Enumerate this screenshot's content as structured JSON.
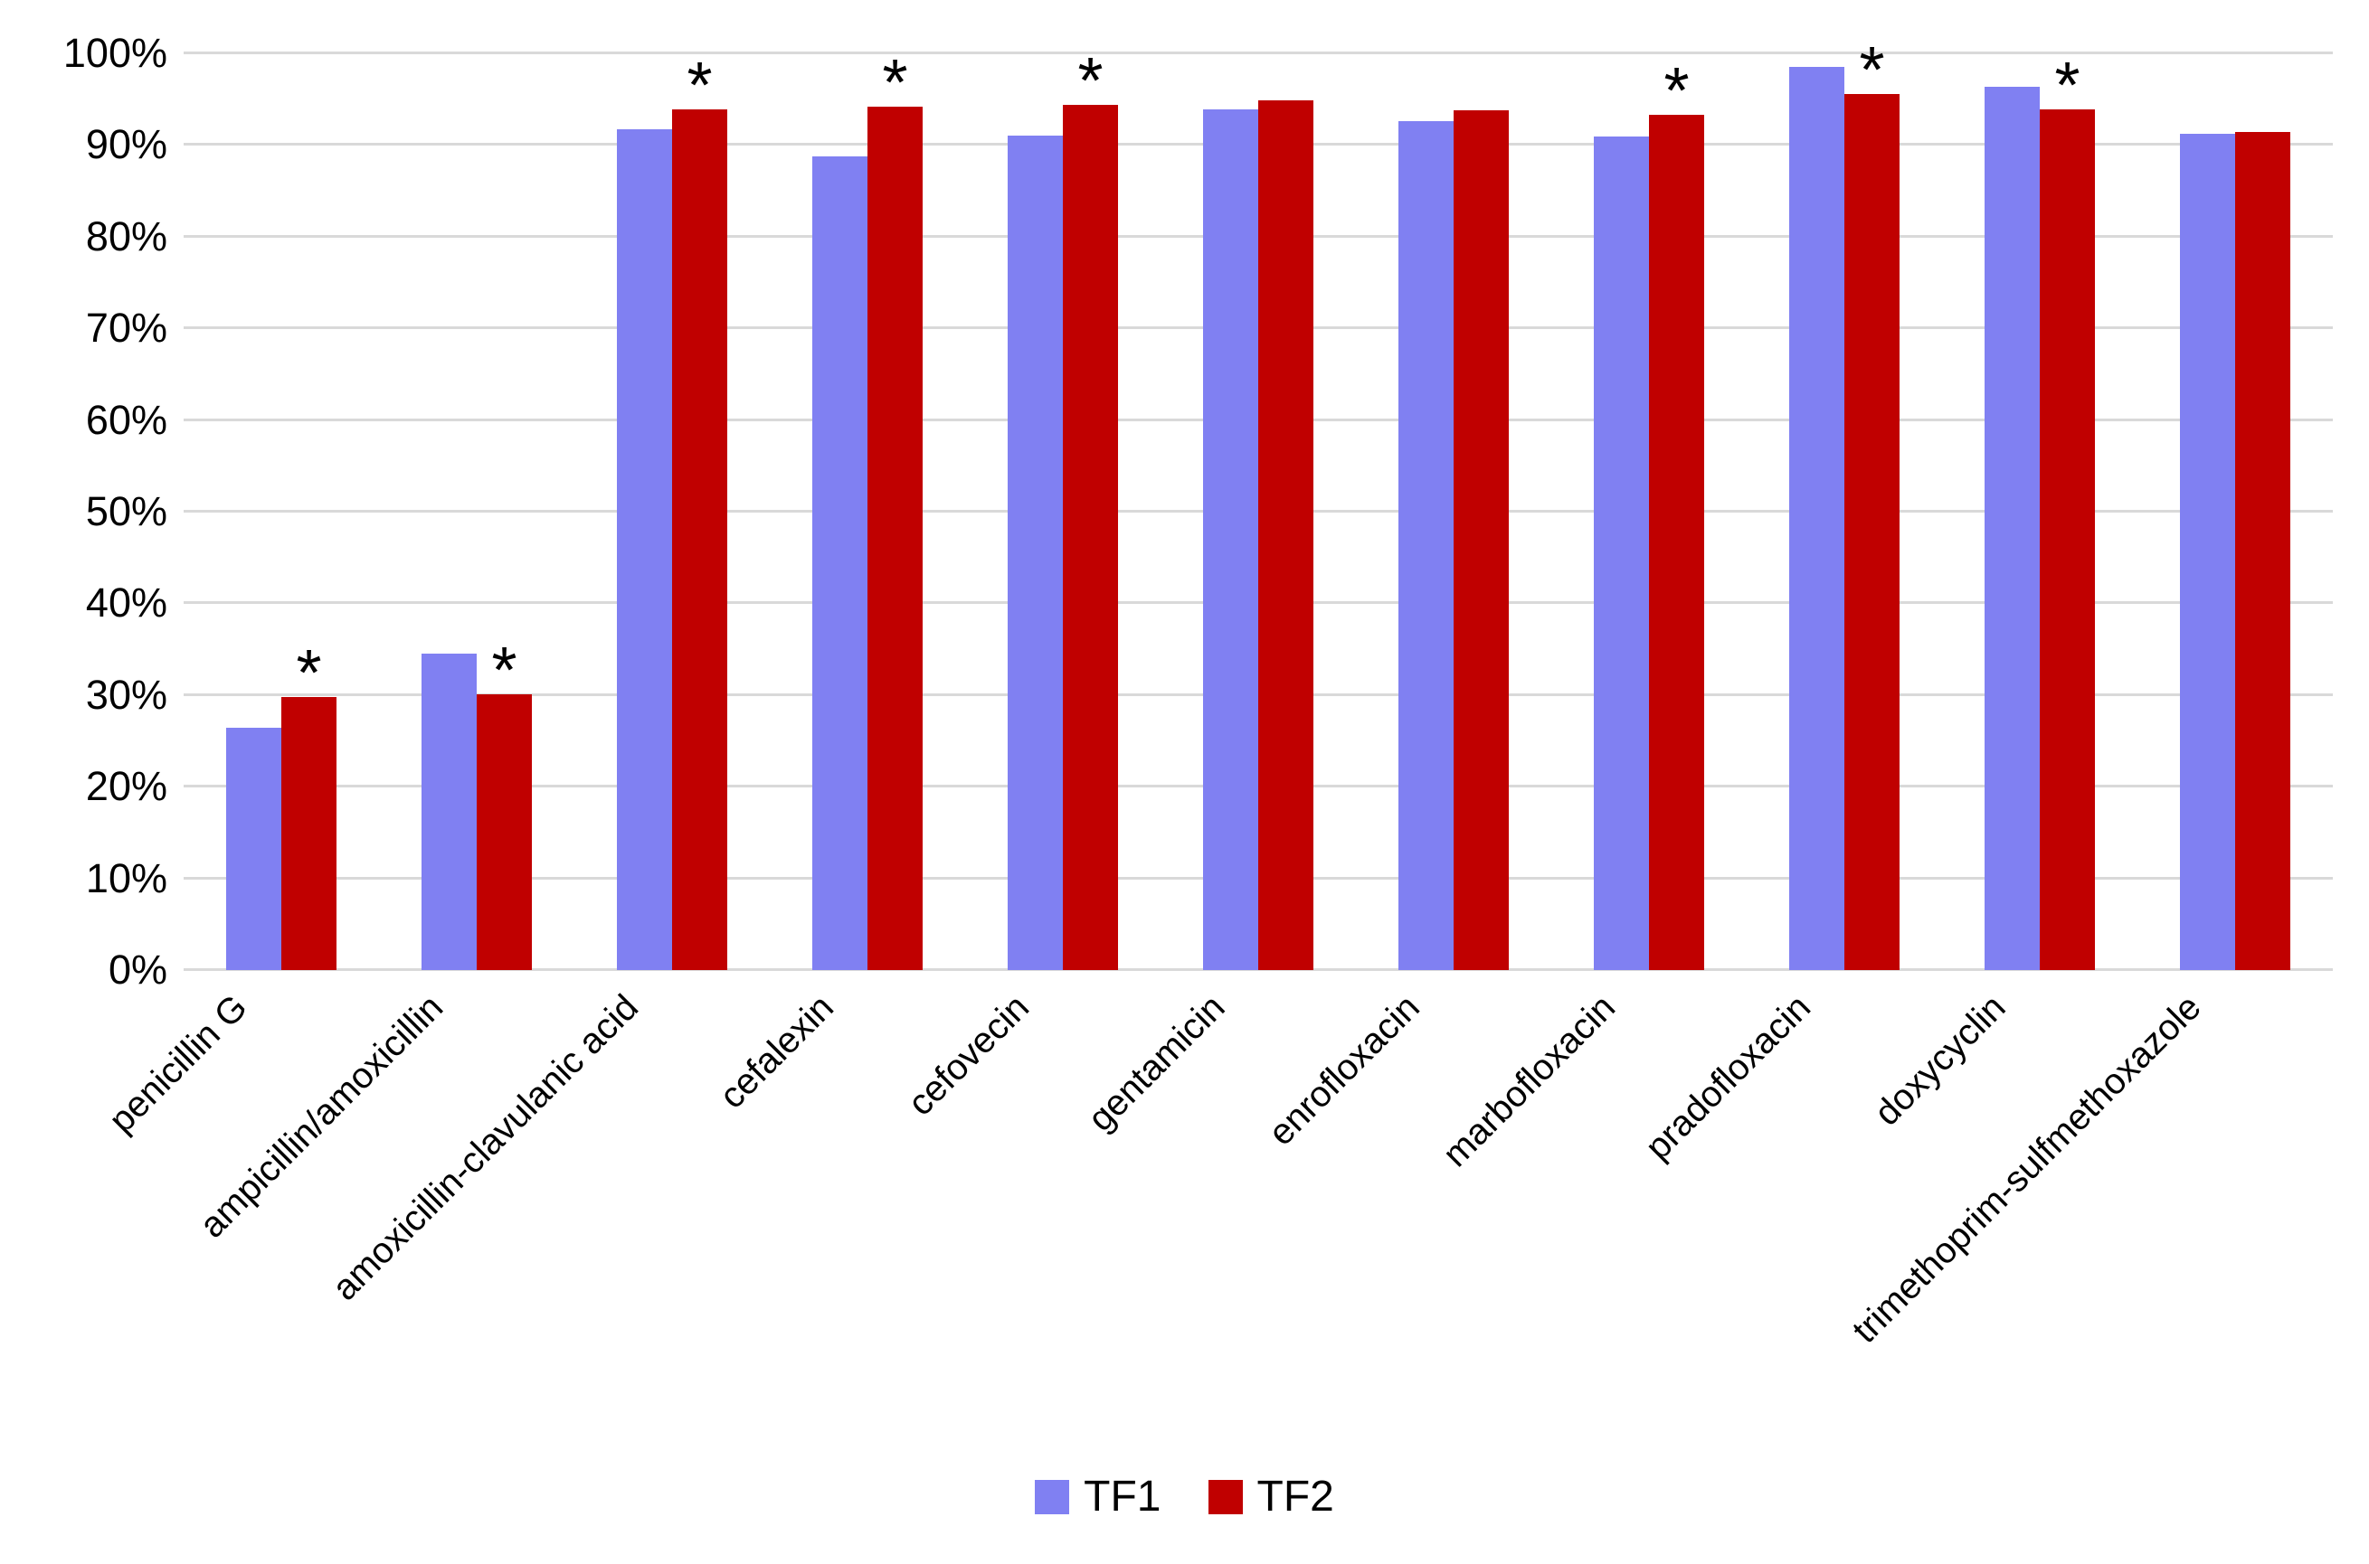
{
  "chart_data": {
    "type": "bar",
    "title": "",
    "xlabel": "",
    "ylabel": "",
    "categories": [
      "penicillin G",
      "ampicillin/amoxicillin",
      "amoxicillin-clavulanic acid",
      "cefalexin",
      "cefovecin",
      "gentamicin",
      "enrofloxacin",
      "marbofloxacin",
      "pradofloxacin",
      "doxycyclin",
      "trimethoprim-sulfmethoxazole"
    ],
    "series": [
      {
        "name": "TF1",
        "color": "#8080F2",
        "values": [
          26.4,
          34.5,
          91.7,
          88.8,
          91.0,
          93.9,
          92.6,
          90.9,
          98.5,
          96.4,
          91.2
        ]
      },
      {
        "name": "TF2",
        "color": "#C00000",
        "values": [
          29.8,
          30.1,
          93.9,
          94.2,
          94.4,
          94.9,
          93.8,
          93.3,
          95.6,
          93.9,
          91.4
        ]
      }
    ],
    "significance_marker": "*",
    "significance_marker_above_series": "TF2",
    "significant_category_indices": [
      0,
      1,
      2,
      3,
      4,
      7,
      8,
      9
    ],
    "y_axis": {
      "min": 0,
      "max": 100,
      "step": 10,
      "tick_labels": [
        "0%",
        "10%",
        "20%",
        "30%",
        "40%",
        "50%",
        "60%",
        "70%",
        "80%",
        "90%",
        "100%"
      ],
      "format": "percent"
    },
    "grid": true,
    "gridline_color": "#D9D9D9",
    "background_color": "#FFFFFF",
    "text_color": "#000000",
    "legend_position": "bottom"
  },
  "legend": {
    "items": [
      {
        "label": "TF1",
        "color": "#8080F2"
      },
      {
        "label": "TF2",
        "color": "#C00000"
      }
    ]
  }
}
